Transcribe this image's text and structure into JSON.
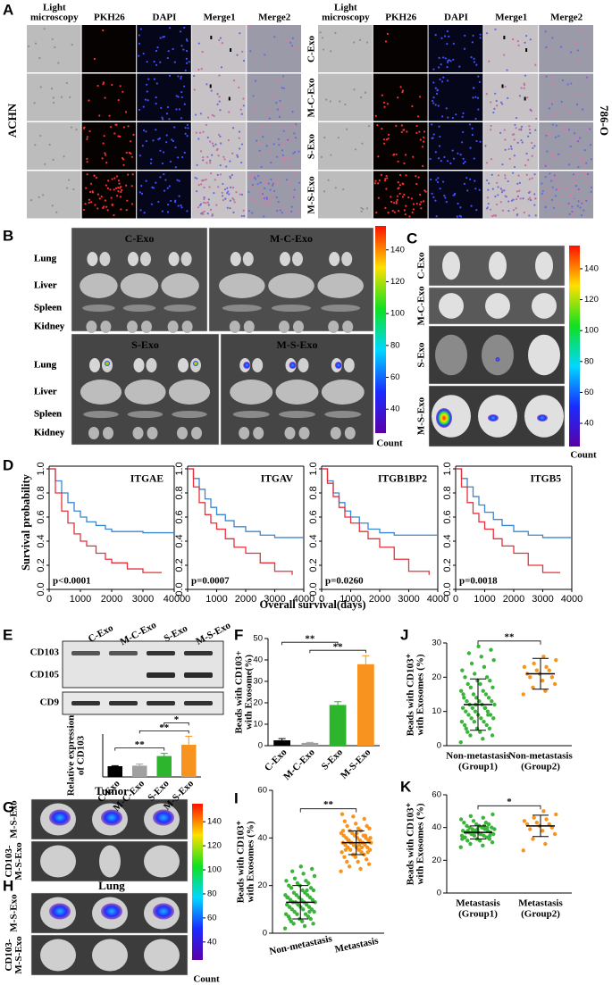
{
  "panel_a": {
    "label": "A",
    "headers": [
      [
        "Light",
        "microscopy"
      ],
      [
        "PKH26"
      ],
      [
        "DAPI"
      ],
      [
        "Merge1"
      ],
      [
        "Merge2"
      ]
    ],
    "rows": [
      "C-Exo",
      "M-C-Exo",
      "S-Exo",
      "M-S-Exo"
    ],
    "left_cell": "ACHN",
    "right_cell": "786-O"
  },
  "panel_b": {
    "label": "B",
    "groups": [
      "C-Exo",
      "M-C-Exo",
      "S-Exo",
      "M-S-Exo"
    ],
    "organs": [
      "Lung",
      "Liver",
      "Spleen",
      "Kidney"
    ]
  },
  "panel_c": {
    "label": "C",
    "rows": [
      "C-Exo",
      "M-C-Exo",
      "S-Exo",
      "M-S-Exo"
    ]
  },
  "colorbar": {
    "lim": [
      25,
      155
    ],
    "ticks": [
      40,
      60,
      80,
      100,
      120,
      140
    ],
    "label": "Count"
  },
  "panel_d": {
    "label": "D",
    "ylabel": "Survival probability",
    "xlabel": "Overall survival(days)"
  },
  "panel_e": {
    "label": "E",
    "lanes": [
      "C-Exo",
      "M-C-Exo",
      "S-Exo",
      "M-S-Exo"
    ],
    "proteins": [
      "CD103",
      "CD105",
      "CD9"
    ]
  },
  "panel_g": {
    "label": "G",
    "title": "Tumor",
    "rows": [
      [
        "M-S-Exo"
      ],
      [
        "CD103-",
        "M-S-Exo"
      ]
    ]
  },
  "panel_h": {
    "label": "H",
    "title": "Lung",
    "rows": [
      [
        "M-S-Exo"
      ],
      [
        "CD103-",
        "M-S-Exo"
      ]
    ]
  },
  "chart_data": [
    {
      "type": "line",
      "title": "ITGAE",
      "annotation": "p<0.0001",
      "xlim": [
        0,
        4000
      ],
      "xticks": [
        0,
        1000,
        2000,
        3000,
        4000
      ],
      "ylim": [
        0,
        1
      ],
      "yticks": [
        {
          "value": 0,
          "label": "0.0"
        },
        0.2,
        0.4,
        0.6,
        0.8,
        {
          "value": 1,
          "label": "1.0"
        }
      ],
      "series": [
        {
          "color": "#3a86d4",
          "x": [
            0,
            200,
            400,
            600,
            800,
            1000,
            1200,
            1500,
            1800,
            2000,
            2500,
            3000,
            3500,
            4000
          ],
          "values": [
            1,
            0.9,
            0.8,
            0.72,
            0.65,
            0.6,
            0.56,
            0.53,
            0.5,
            0.48,
            0.48,
            0.47,
            0.47,
            0.47
          ]
        },
        {
          "color": "#e8303a",
          "x": [
            0,
            200,
            400,
            600,
            800,
            1000,
            1200,
            1500,
            1800,
            2000,
            2500,
            3000,
            3600
          ],
          "values": [
            1,
            0.8,
            0.65,
            0.55,
            0.46,
            0.4,
            0.36,
            0.3,
            0.25,
            0.22,
            0.17,
            0.14,
            0.14
          ]
        }
      ]
    },
    {
      "type": "line",
      "title": "ITGAV",
      "annotation": "p=0.0007",
      "xlim": [
        0,
        4000
      ],
      "xticks": [
        0,
        1000,
        2000,
        3000,
        4000
      ],
      "ylim": [
        0,
        1
      ],
      "yticks": [
        {
          "value": 0,
          "label": "0.0"
        },
        0.2,
        0.4,
        0.6,
        0.8,
        {
          "value": 1,
          "label": "1.0"
        }
      ],
      "series": [
        {
          "color": "#3a86d4",
          "x": [
            0,
            200,
            400,
            600,
            800,
            1000,
            1300,
            1600,
            2000,
            2500,
            3000,
            4000
          ],
          "values": [
            1,
            0.92,
            0.83,
            0.75,
            0.68,
            0.62,
            0.57,
            0.52,
            0.48,
            0.45,
            0.43,
            0.43
          ]
        },
        {
          "color": "#e8303a",
          "x": [
            0,
            200,
            400,
            600,
            800,
            1000,
            1300,
            1600,
            2000,
            2500,
            3000,
            3600
          ],
          "values": [
            1,
            0.85,
            0.72,
            0.62,
            0.55,
            0.5,
            0.42,
            0.35,
            0.3,
            0.22,
            0.15,
            0.12
          ]
        }
      ]
    },
    {
      "type": "line",
      "title": "ITGB1BP2",
      "annotation": "p=0.0260",
      "xlim": [
        0,
        4000
      ],
      "xticks": [
        0,
        1000,
        2000,
        3000,
        4000
      ],
      "ylim": [
        0,
        1
      ],
      "yticks": [
        {
          "value": 0,
          "label": "0.0"
        },
        0.2,
        0.4,
        0.6,
        0.8,
        {
          "value": 1,
          "label": "1.0"
        }
      ],
      "series": [
        {
          "color": "#3a86d4",
          "x": [
            0,
            200,
            400,
            600,
            800,
            1000,
            1300,
            1600,
            2000,
            2500,
            3000,
            4000
          ],
          "values": [
            1,
            0.9,
            0.8,
            0.72,
            0.65,
            0.6,
            0.55,
            0.5,
            0.47,
            0.45,
            0.45,
            0.45
          ]
        },
        {
          "color": "#e8303a",
          "x": [
            0,
            200,
            400,
            600,
            800,
            1000,
            1300,
            1600,
            2000,
            2500,
            3000,
            3700
          ],
          "values": [
            1,
            0.88,
            0.77,
            0.68,
            0.6,
            0.55,
            0.48,
            0.42,
            0.35,
            0.25,
            0.15,
            0.12
          ]
        }
      ]
    },
    {
      "type": "line",
      "title": "ITGB5",
      "annotation": "p=0.0018",
      "xlim": [
        0,
        4000
      ],
      "xticks": [
        0,
        1000,
        2000,
        3000,
        4000
      ],
      "ylim": [
        0,
        1
      ],
      "yticks": [
        {
          "value": 0,
          "label": "0.0"
        },
        0.2,
        0.4,
        0.6,
        0.8,
        {
          "value": 1,
          "label": "1.0"
        }
      ],
      "series": [
        {
          "color": "#3a86d4",
          "x": [
            0,
            200,
            400,
            600,
            800,
            1000,
            1300,
            1600,
            2000,
            2500,
            3000,
            4000
          ],
          "values": [
            1,
            0.92,
            0.85,
            0.77,
            0.7,
            0.64,
            0.58,
            0.53,
            0.48,
            0.45,
            0.43,
            0.43
          ]
        },
        {
          "color": "#e8303a",
          "x": [
            0,
            200,
            400,
            600,
            800,
            1000,
            1300,
            1600,
            2000,
            2500,
            3000,
            3600
          ],
          "values": [
            1,
            0.85,
            0.72,
            0.63,
            0.56,
            0.5,
            0.42,
            0.36,
            0.3,
            0.2,
            0.14,
            0.14
          ]
        }
      ]
    },
    {
      "type": "bar",
      "ylabel": [
        "Relative expression",
        "of CD103"
      ],
      "categories": [
        "C-Exo",
        "M-C-Exo",
        "S-Exo",
        "M-S-Exo"
      ],
      "values": [
        1.0,
        1.05,
        1.95,
        3.0
      ],
      "errors": [
        0.05,
        0.15,
        0.25,
        0.8
      ],
      "colors": [
        "#000000",
        "#a0a0a0",
        "#2db52d",
        "#f7931e"
      ],
      "ylim": [
        0,
        4
      ],
      "brackets": [
        {
          "pair": [
            0,
            2
          ],
          "label": "**"
        },
        {
          "pair": [
            1,
            3
          ],
          "label": "**"
        },
        {
          "pair": [
            2,
            3
          ],
          "label": "*"
        }
      ]
    },
    {
      "type": "bar",
      "panel": "F",
      "ylabel": [
        "Beads with CD103+",
        "with Exosome(%)"
      ],
      "categories": [
        "C-Exo",
        "M-C-Exo",
        "S-Exo",
        "M-S-Exo"
      ],
      "values": [
        2.5,
        1.3,
        19,
        38
      ],
      "errors": [
        0.8,
        0.2,
        1.5,
        4
      ],
      "colors": [
        "#000000",
        "#a0a0a0",
        "#2db52d",
        "#f7931e"
      ],
      "ylim": [
        0,
        50
      ],
      "yticks": [
        0,
        10,
        20,
        30,
        40,
        50
      ],
      "brackets": [
        {
          "pair": [
            1,
            3
          ],
          "label": "**"
        },
        {
          "pair": [
            0,
            2
          ],
          "label": "**"
        }
      ]
    },
    {
      "type": "strip",
      "panel": "J",
      "ylabel": [
        "Beads with CD103⁺",
        "with Exosomes (%)"
      ],
      "categories": [
        [
          "Non-metastasis",
          "(Group1)"
        ],
        [
          "Non-metastasis",
          "(Group2)"
        ]
      ],
      "ylim": [
        0,
        30
      ],
      "yticks": [
        0,
        10,
        20,
        30
      ],
      "significance": "**",
      "series": [
        {
          "color": "#3cb43c",
          "mean": 12,
          "sd": 7.5,
          "values": [
            1,
            2,
            3,
            3,
            4,
            4,
            5,
            5,
            6,
            6,
            7,
            7,
            7,
            8,
            8,
            8,
            9,
            9,
            9,
            10,
            10,
            10,
            11,
            11,
            11,
            12,
            12,
            12,
            13,
            13,
            13,
            14,
            14,
            14,
            15,
            15,
            16,
            16,
            17,
            17,
            18,
            18,
            19,
            19,
            20,
            20,
            21,
            22,
            23,
            24,
            25,
            26,
            27,
            28,
            29,
            5,
            9,
            12,
            15,
            11
          ]
        },
        {
          "color": "#f7941d",
          "mean": 21,
          "sd": 4.5,
          "values": [
            15,
            16,
            17,
            18,
            19,
            20,
            20,
            21,
            21,
            22,
            22,
            23,
            23,
            24,
            25,
            26
          ]
        }
      ]
    },
    {
      "type": "strip",
      "panel": "I",
      "ylabel": [
        "Beads with CD103⁺",
        "with Exosomes (%)"
      ],
      "categories": [
        [
          "Non-metastasis"
        ],
        [
          "Metastasis"
        ]
      ],
      "ylim": [
        0,
        60
      ],
      "yticks": [
        0,
        20,
        40,
        60
      ],
      "significance": "**",
      "series": [
        {
          "color": "#3cb43c",
          "mean": 13,
          "sd": 7,
          "values": [
            2,
            3,
            4,
            4,
            5,
            5,
            6,
            6,
            7,
            7,
            8,
            8,
            8,
            9,
            9,
            10,
            10,
            10,
            11,
            11,
            11,
            12,
            12,
            12,
            13,
            13,
            13,
            13,
            14,
            14,
            14,
            15,
            15,
            15,
            16,
            16,
            16,
            17,
            17,
            18,
            18,
            19,
            19,
            20,
            20,
            21,
            21,
            22,
            22,
            23,
            24,
            25,
            26,
            27,
            28,
            6,
            9,
            12,
            15,
            18
          ]
        },
        {
          "color": "#f7941d",
          "mean": 38,
          "sd": 5,
          "values": [
            26,
            27,
            28,
            29,
            30,
            30,
            31,
            32,
            32,
            33,
            33,
            34,
            34,
            35,
            35,
            35,
            36,
            36,
            36,
            37,
            37,
            37,
            38,
            38,
            38,
            38,
            39,
            39,
            39,
            40,
            40,
            40,
            41,
            41,
            41,
            42,
            42,
            43,
            43,
            44,
            44,
            45,
            45,
            46,
            47,
            48,
            49,
            50,
            36,
            38,
            40,
            37,
            39,
            34,
            42,
            35,
            41,
            33,
            43,
            38
          ]
        }
      ]
    },
    {
      "type": "strip",
      "panel": "K",
      "ylabel": [
        "Beads with CD103⁺",
        "with Exosomes (%)"
      ],
      "categories": [
        [
          "Metastasis",
          "(Group1)"
        ],
        [
          "Metastasis",
          "(Group2)"
        ]
      ],
      "ylim": [
        0,
        60
      ],
      "yticks": [
        0,
        20,
        40,
        60
      ],
      "significance": "*",
      "series": [
        {
          "color": "#3cb43c",
          "mean": 37,
          "sd": 4,
          "values": [
            28,
            29,
            30,
            31,
            32,
            32,
            33,
            33,
            34,
            34,
            35,
            35,
            35,
            36,
            36,
            36,
            37,
            37,
            37,
            37,
            38,
            38,
            38,
            39,
            39,
            39,
            40,
            40,
            40,
            41,
            41,
            42,
            42,
            43,
            43,
            44,
            45,
            46,
            47,
            48,
            36,
            38,
            35,
            39,
            34,
            40,
            37,
            33,
            41,
            37
          ]
        },
        {
          "color": "#f7941d",
          "mean": 41,
          "sd": 6.5,
          "values": [
            26,
            30,
            33,
            36,
            38,
            39,
            40,
            41,
            42,
            42,
            43,
            44,
            45,
            46,
            48,
            50
          ]
        }
      ]
    }
  ]
}
